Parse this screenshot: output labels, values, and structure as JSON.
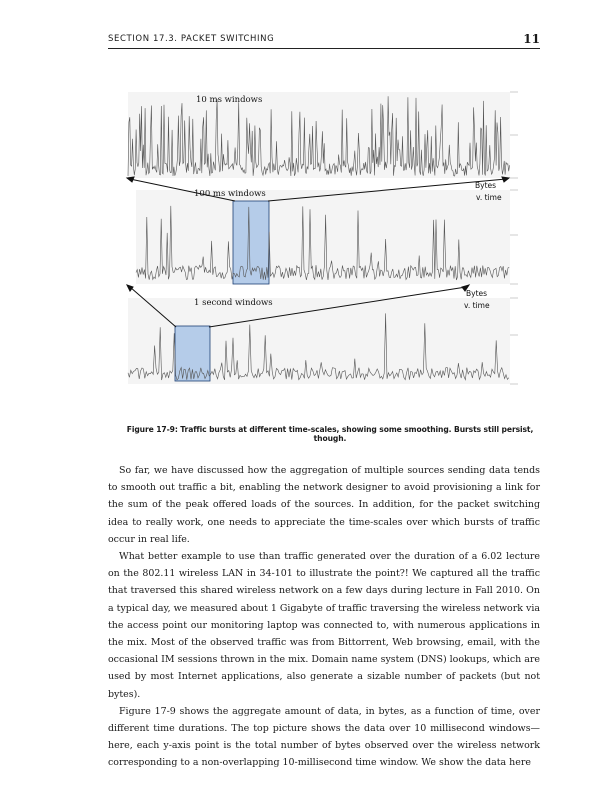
{
  "header": {
    "section": "Section 17.3. Packet Switching",
    "page_number": "11"
  },
  "figure": {
    "panels": [
      {
        "label": "10 ms windows",
        "annotation": ""
      },
      {
        "label": "100 ms windows",
        "annotation_line1": "Bytes",
        "annotation_line2": "v. time"
      },
      {
        "label": "1 second windows",
        "annotation_line1": "Bytes",
        "annotation_line2": "v. time"
      }
    ],
    "caption": "Figure 17-9: Traffic bursts at different time-scales, showing some smoothing. Bursts still persist, though.",
    "highlight_color": "#a9c4e6",
    "highlight_border": "#1f3f73",
    "trace_color": "#555555"
  },
  "body": {
    "paragraphs": [
      "So far, we have discussed how the aggregation of multiple sources sending data tends to smooth out traffic a bit, enabling the network designer to avoid provisioning a link for the sum of the peak offered loads of the sources. In addition, for the packet switching idea to really work, one needs to appreciate the time-scales over which bursts of traffic occur in real life.",
      "What better example to use than traffic generated over the duration of a 6.02 lecture on the 802.11 wireless LAN in 34-101 to illustrate the point?! We captured all the traffic that traversed this shared wireless network on a few days during lecture in Fall 2010. On a typical day, we measured about 1 Gigabyte of traffic traversing the wireless network via the access point our monitoring laptop was connected to, with numerous applications in the mix. Most of the observed traffic was from Bittorrent, Web browsing, email, with the occasional IM sessions thrown in the mix. Domain name system (DNS) lookups, which are used by most Internet applications, also generate a sizable number of packets (but not bytes).",
      "Figure 17-9 shows the aggregate amount of data, in bytes, as a function of time, over different time durations. The top picture shows the data over 10 millisecond windows—here, each y-axis point is the total number of bytes observed over the wireless network corresponding to a non-overlapping 10-millisecond time window. We show the data here"
    ]
  }
}
